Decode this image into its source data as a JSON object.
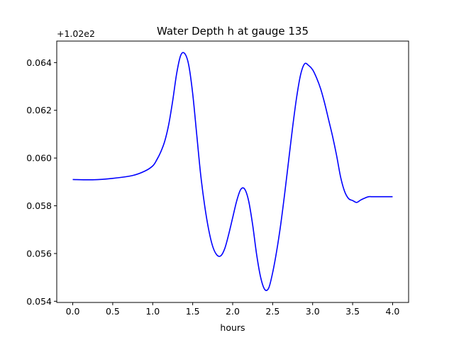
{
  "chart_data": {
    "type": "line",
    "title": "Water Depth h at gauge 135",
    "xlabel": "hours",
    "ylabel": "",
    "offset_label": "+1.02e2",
    "xlim": [
      -0.2,
      4.2
    ],
    "ylim": [
      0.05395,
      0.0649
    ],
    "x_ticks": [
      0.0,
      0.5,
      1.0,
      1.5,
      2.0,
      2.5,
      3.0,
      3.5,
      4.0
    ],
    "x_tick_labels": [
      "0.0",
      "0.5",
      "1.0",
      "1.5",
      "2.0",
      "2.5",
      "3.0",
      "3.5",
      "4.0"
    ],
    "y_ticks": [
      0.054,
      0.056,
      0.058,
      0.06,
      0.062,
      0.064
    ],
    "y_tick_labels": [
      "0.054",
      "0.056",
      "0.058",
      "0.060",
      "0.062",
      "0.064"
    ],
    "grid": false,
    "series": [
      {
        "color": "#0000ff",
        "x": [
          0.0,
          0.25,
          0.5,
          0.75,
          0.9,
          1.0,
          1.05,
          1.1,
          1.15,
          1.2,
          1.25,
          1.3,
          1.35,
          1.4,
          1.45,
          1.5,
          1.55,
          1.6,
          1.65,
          1.7,
          1.75,
          1.8,
          1.85,
          1.9,
          1.95,
          2.0,
          2.05,
          2.1,
          2.15,
          2.2,
          2.25,
          2.3,
          2.35,
          2.4,
          2.45,
          2.5,
          2.55,
          2.6,
          2.65,
          2.7,
          2.75,
          2.8,
          2.85,
          2.9,
          2.95,
          3.0,
          3.05,
          3.1,
          3.15,
          3.2,
          3.25,
          3.3,
          3.35,
          3.4,
          3.45,
          3.5,
          3.55,
          3.6,
          3.65,
          3.7,
          3.75,
          3.8,
          3.85,
          3.9,
          3.95,
          4.0
        ],
        "y": [
          0.0591,
          0.05909,
          0.05915,
          0.05927,
          0.05945,
          0.05967,
          0.05992,
          0.06025,
          0.0607,
          0.0614,
          0.0624,
          0.06355,
          0.0643,
          0.06438,
          0.0639,
          0.0627,
          0.061,
          0.0593,
          0.058,
          0.057,
          0.0563,
          0.05595,
          0.0559,
          0.0562,
          0.0568,
          0.0575,
          0.0582,
          0.05868,
          0.0587,
          0.0582,
          0.0572,
          0.05595,
          0.055,
          0.0545,
          0.05455,
          0.0552,
          0.0561,
          0.0572,
          0.0585,
          0.0599,
          0.0613,
          0.06255,
          0.0635,
          0.06395,
          0.06388,
          0.0637,
          0.06335,
          0.0629,
          0.0623,
          0.0616,
          0.0609,
          0.0601,
          0.0592,
          0.0586,
          0.0583,
          0.05822,
          0.05814,
          0.05824,
          0.05832,
          0.05838,
          0.05838,
          0.05838,
          0.05838,
          0.05838,
          0.05838,
          0.05838
        ]
      }
    ]
  }
}
